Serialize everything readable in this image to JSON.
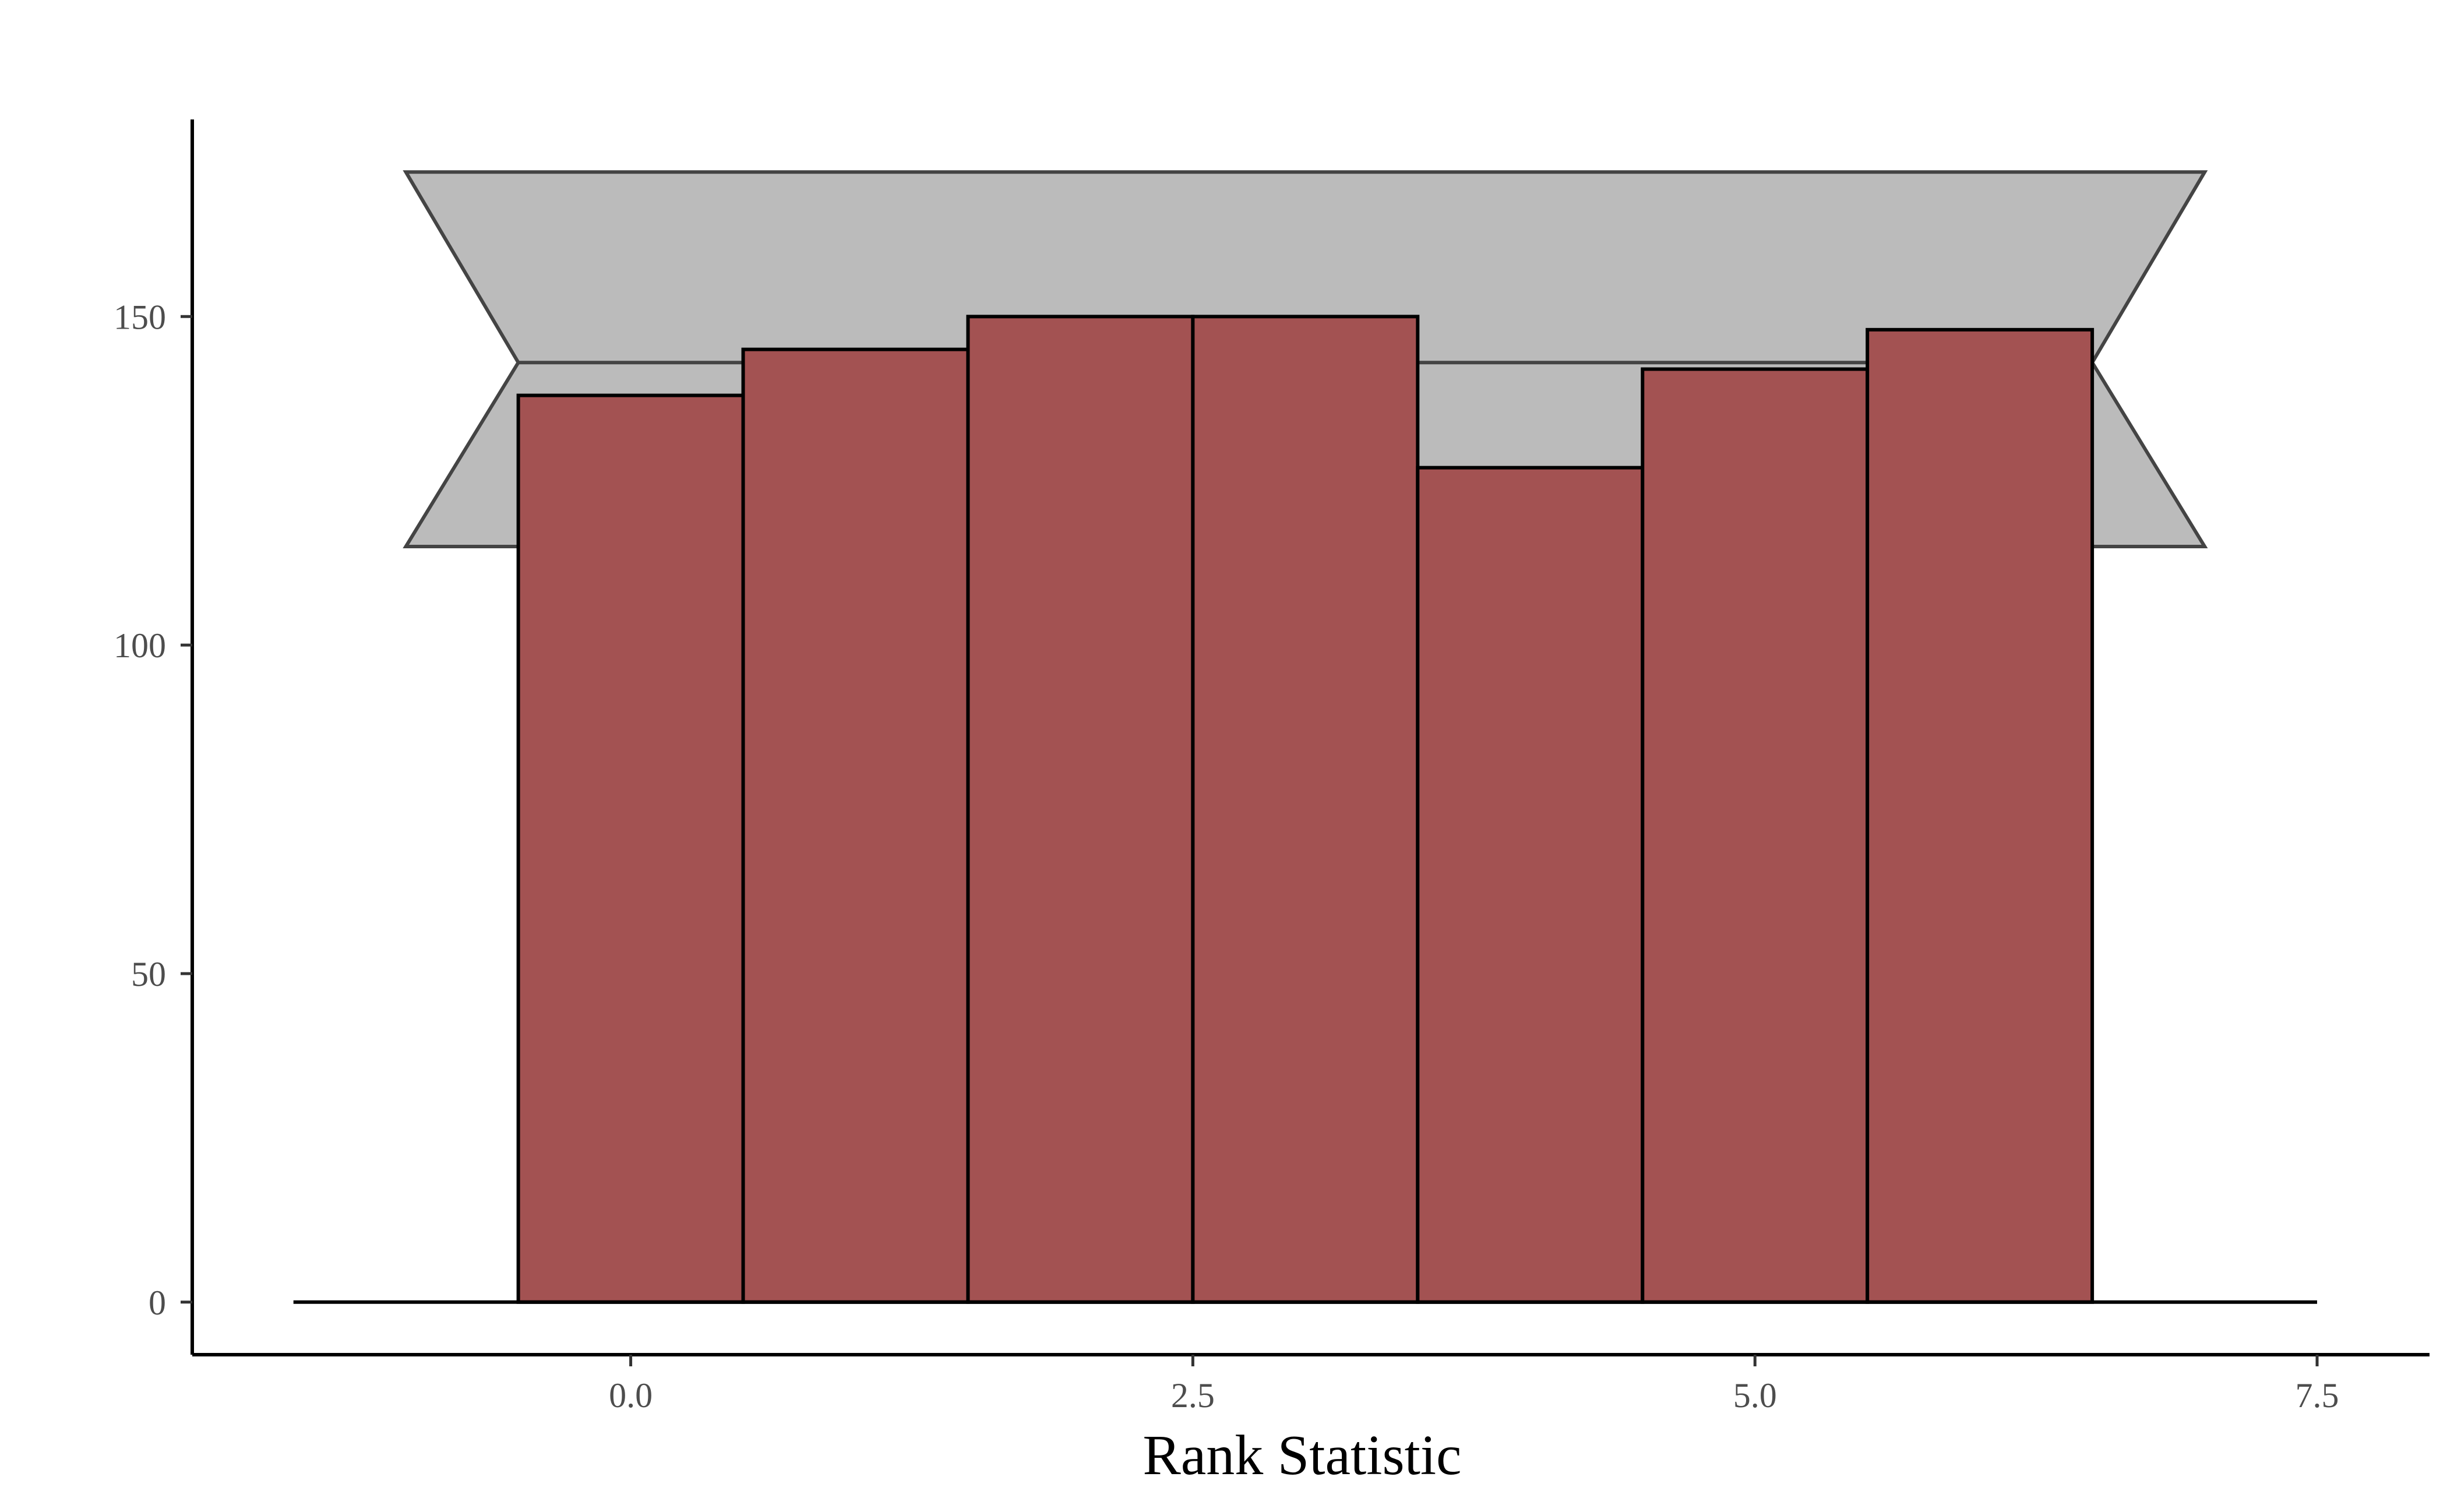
{
  "chart_data": {
    "type": "bar",
    "title": "",
    "xlabel": "Rank Statistic",
    "ylabel": "",
    "bins": [
      {
        "x": 0,
        "value": 138
      },
      {
        "x": 1,
        "value": 145
      },
      {
        "x": 2,
        "value": 150
      },
      {
        "x": 3,
        "value": 150
      },
      {
        "x": 4,
        "value": 127
      },
      {
        "x": 5,
        "value": 142
      },
      {
        "x": 6,
        "value": 148
      }
    ],
    "bin_width": 1,
    "baseline_range": [
      -1.5,
      7.5
    ],
    "expected_band": {
      "mean": 143,
      "lower": 115,
      "upper": 172,
      "x_outer": [
        -1,
        7
      ],
      "x_inner": [
        -0.5,
        6.5
      ]
    },
    "xlim": [
      -1.95,
      8.0
    ],
    "ylim": [
      -8,
      180
    ],
    "xticks": [
      0.0,
      2.5,
      5.0,
      7.5
    ],
    "xtick_labels": [
      "0.0",
      "2.5",
      "5.0",
      "7.5"
    ],
    "yticks": [
      0,
      50,
      100,
      150
    ],
    "ytick_labels": [
      "0",
      "50",
      "100",
      "150"
    ],
    "grid": false,
    "legend": "none",
    "colors": {
      "bar_fill": "#a35252",
      "bar_stroke": "#000000",
      "band_fill": "#bbbbbb",
      "band_stroke": "#444444",
      "tick_text": "#4d4d4d"
    }
  }
}
